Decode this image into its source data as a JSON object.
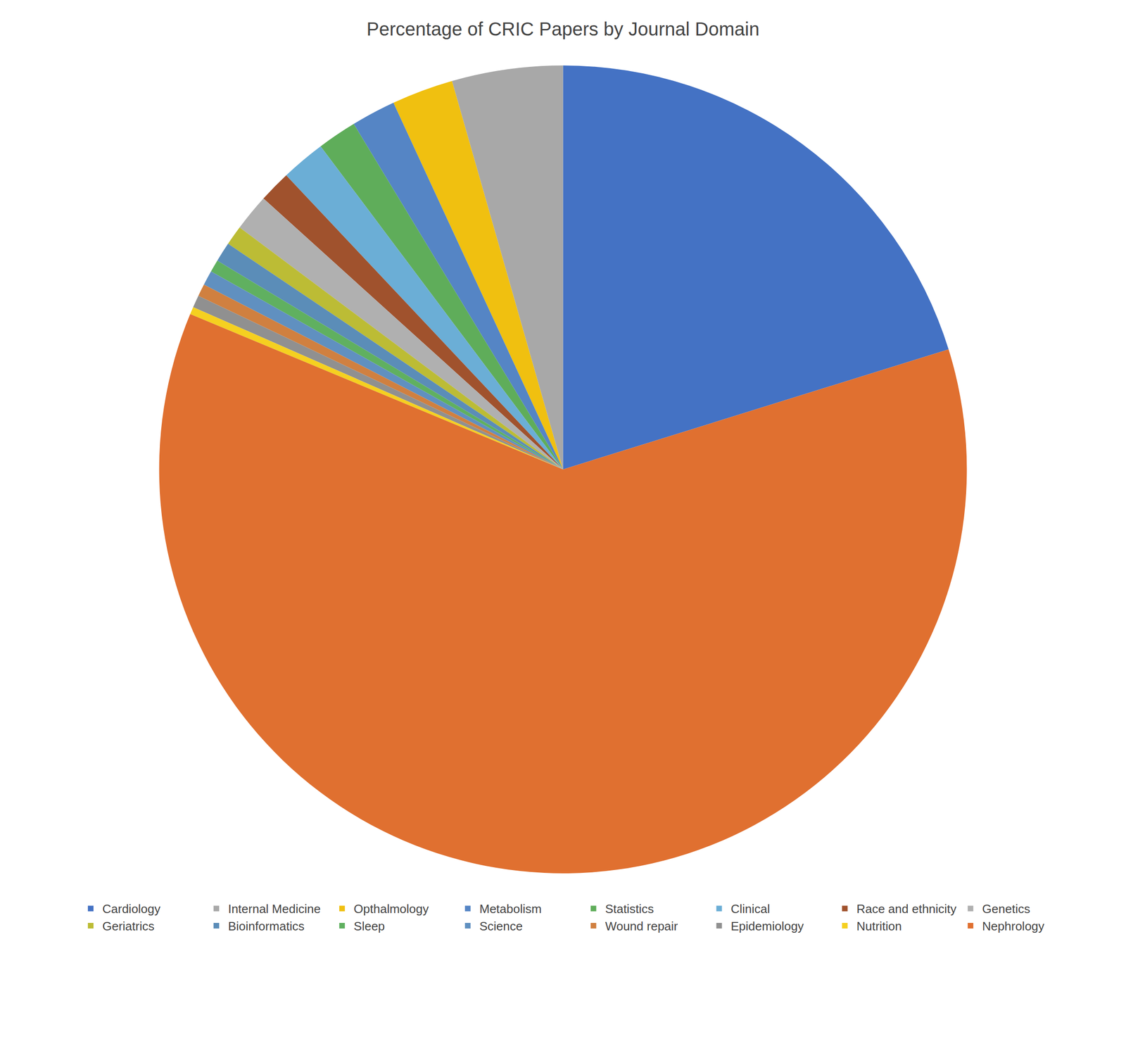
{
  "chart_data": {
    "type": "pie",
    "title": "Percentage of CRIC Papers by Journal Domain",
    "categories": [
      "Cardiology",
      "Internal Medicine",
      "Opthalmology",
      "Metabolism",
      "Statistics",
      "Clinical",
      "Race and ethnicity",
      "Genetics",
      "Geriatrics",
      "Bioinformatics",
      "Sleep",
      "Science",
      "Wound repair",
      "Epidemiology",
      "Nutrition",
      "Nephrology"
    ],
    "values": [
      20.5,
      4.5,
      2.5,
      1.8,
      1.6,
      1.8,
      1.3,
      1.5,
      0.8,
      0.8,
      0.5,
      0.6,
      0.5,
      0.5,
      0.3,
      62.0
    ],
    "colors": [
      "#4472C4",
      "#A8A8A8",
      "#F0C010",
      "#5585C5",
      "#5FAD5A",
      "#6BAED6",
      "#A0522D",
      "#B0B0B0",
      "#BCBC35",
      "#5B8DB8",
      "#60B060",
      "#6090C0",
      "#D08040",
      "#909090",
      "#F5D020",
      "#E07030"
    ],
    "legend": "bottom"
  }
}
